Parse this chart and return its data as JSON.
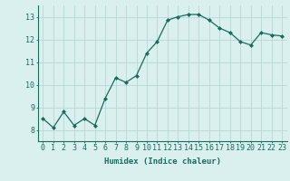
{
  "x": [
    0,
    1,
    2,
    3,
    4,
    5,
    6,
    7,
    8,
    9,
    10,
    11,
    12,
    13,
    14,
    15,
    16,
    17,
    18,
    19,
    20,
    21,
    22,
    23
  ],
  "y": [
    8.5,
    8.1,
    8.8,
    8.2,
    8.5,
    8.2,
    9.4,
    10.3,
    10.1,
    10.4,
    11.4,
    11.9,
    12.85,
    13.0,
    13.1,
    13.1,
    12.85,
    12.5,
    12.3,
    11.9,
    11.75,
    12.3,
    12.2,
    12.15
  ],
  "line_color": "#1a6b5a",
  "marker": "D",
  "marker_size": 2,
  "bg_color": "#d9f0ef",
  "grid_color": "#b8d8d5",
  "xlabel": "Humidex (Indice chaleur)",
  "ylim": [
    7.5,
    13.5
  ],
  "xlim": [
    -0.5,
    23.5
  ],
  "yticks": [
    8,
    9,
    10,
    11,
    12,
    13
  ],
  "xticks": [
    0,
    1,
    2,
    3,
    4,
    5,
    6,
    7,
    8,
    9,
    10,
    11,
    12,
    13,
    14,
    15,
    16,
    17,
    18,
    19,
    20,
    21,
    22,
    23
  ],
  "label_fontsize": 6.5,
  "tick_fontsize": 6.0
}
